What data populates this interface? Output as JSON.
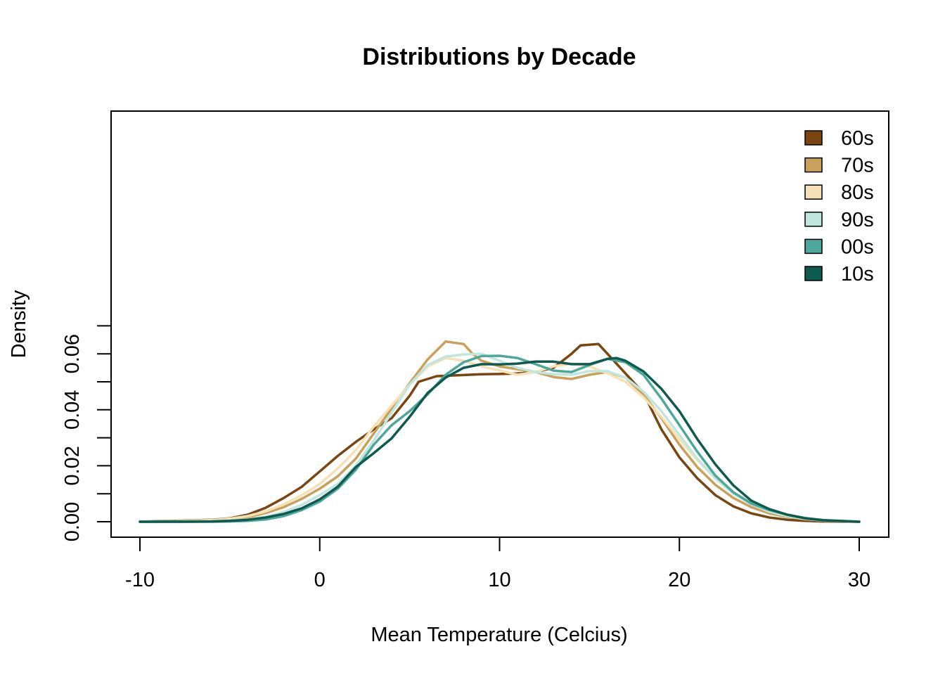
{
  "chart_data": {
    "type": "line",
    "title": "Distributions by Decade",
    "xlabel": "Mean Temperature (Celcius)",
    "ylabel": "Density",
    "xlim": [
      -10,
      30
    ],
    "ylim": [
      0,
      0.07
    ],
    "x_ticks": [
      "-10",
      "0",
      "10",
      "20",
      "30"
    ],
    "y_ticks": [
      "0.00",
      "0.02",
      "0.04",
      "0.06"
    ],
    "legend_position": "top-right",
    "grid": false,
    "series": [
      {
        "name": "60s",
        "color": "#7a4510",
        "points": [
          [
            -10,
            0
          ],
          [
            -9,
            0.0002
          ],
          [
            -8,
            0.0003
          ],
          [
            -7,
            0.0005
          ],
          [
            -6,
            0.0007
          ],
          [
            -5,
            0.0012
          ],
          [
            -4,
            0.0025
          ],
          [
            -3,
            0.005
          ],
          [
            -2,
            0.0085
          ],
          [
            -1,
            0.0125
          ],
          [
            0,
            0.018
          ],
          [
            1,
            0.0235
          ],
          [
            2,
            0.0285
          ],
          [
            3,
            0.033
          ],
          [
            4,
            0.037
          ],
          [
            5,
            0.045
          ],
          [
            5.5,
            0.05
          ],
          [
            6.5,
            0.052
          ],
          [
            8,
            0.0524
          ],
          [
            9,
            0.0527
          ],
          [
            10,
            0.0528
          ],
          [
            11,
            0.053
          ],
          [
            12,
            0.0535
          ],
          [
            13,
            0.055
          ],
          [
            14,
            0.06
          ],
          [
            14.5,
            0.063
          ],
          [
            15.5,
            0.0635
          ],
          [
            16,
            0.06
          ],
          [
            17,
            0.053
          ],
          [
            18,
            0.046
          ],
          [
            19,
            0.033
          ],
          [
            20,
            0.023
          ],
          [
            21,
            0.0155
          ],
          [
            22,
            0.0095
          ],
          [
            23,
            0.0055
          ],
          [
            24,
            0.003
          ],
          [
            25,
            0.0015
          ],
          [
            26,
            0.0007
          ],
          [
            27,
            0.0003
          ],
          [
            28,
            0.0001
          ],
          [
            30,
            0
          ]
        ]
      },
      {
        "name": "70s",
        "color": "#c9a15a",
        "points": [
          [
            -10,
            0
          ],
          [
            -8,
            0.0001
          ],
          [
            -6,
            0.0004
          ],
          [
            -5,
            0.0008
          ],
          [
            -4,
            0.0016
          ],
          [
            -3,
            0.0031
          ],
          [
            -2,
            0.0052
          ],
          [
            -1,
            0.0082
          ],
          [
            0,
            0.0118
          ],
          [
            1,
            0.0162
          ],
          [
            2,
            0.0225
          ],
          [
            3,
            0.0315
          ],
          [
            4,
            0.0405
          ],
          [
            5,
            0.0495
          ],
          [
            6,
            0.058
          ],
          [
            7,
            0.0644
          ],
          [
            8,
            0.0635
          ],
          [
            8.5,
            0.06
          ],
          [
            9,
            0.0575
          ],
          [
            10,
            0.0555
          ],
          [
            11,
            0.0545
          ],
          [
            12,
            0.0535
          ],
          [
            13,
            0.0517
          ],
          [
            14,
            0.051
          ],
          [
            15,
            0.0525
          ],
          [
            16,
            0.0535
          ],
          [
            17,
            0.0515
          ],
          [
            18,
            0.0455
          ],
          [
            19,
            0.037
          ],
          [
            20,
            0.0275
          ],
          [
            21,
            0.0195
          ],
          [
            22,
            0.0132
          ],
          [
            23,
            0.0085
          ],
          [
            24,
            0.0052
          ],
          [
            25,
            0.003
          ],
          [
            26,
            0.0017
          ],
          [
            27,
            0.0009
          ],
          [
            28,
            0.0004
          ],
          [
            30,
            0
          ]
        ]
      },
      {
        "name": "80s",
        "color": "#f5e1b5",
        "points": [
          [
            -10,
            0
          ],
          [
            -8,
            0.0002
          ],
          [
            -6,
            0.0006
          ],
          [
            -5,
            0.0011
          ],
          [
            -4,
            0.002
          ],
          [
            -3,
            0.0037
          ],
          [
            -2,
            0.0062
          ],
          [
            -1,
            0.0095
          ],
          [
            0,
            0.0135
          ],
          [
            1,
            0.019
          ],
          [
            2,
            0.0255
          ],
          [
            3,
            0.034
          ],
          [
            4,
            0.0415
          ],
          [
            5,
            0.049
          ],
          [
            6,
            0.0555
          ],
          [
            7,
            0.0585
          ],
          [
            8,
            0.0575
          ],
          [
            9,
            0.0555
          ],
          [
            10,
            0.054
          ],
          [
            11,
            0.0525
          ],
          [
            12,
            0.0535
          ],
          [
            13,
            0.0555
          ],
          [
            14,
            0.0565
          ],
          [
            15,
            0.0555
          ],
          [
            16,
            0.053
          ],
          [
            17,
            0.05
          ],
          [
            18,
            0.0445
          ],
          [
            19,
            0.0375
          ],
          [
            20,
            0.0295
          ],
          [
            21,
            0.022
          ],
          [
            22,
            0.0155
          ],
          [
            23,
            0.0105
          ],
          [
            24,
            0.0068
          ],
          [
            25,
            0.0042
          ],
          [
            26,
            0.0024
          ],
          [
            27,
            0.0013
          ],
          [
            28,
            0.0006
          ],
          [
            30,
            0
          ]
        ]
      },
      {
        "name": "90s",
        "color": "#c0e6de",
        "points": [
          [
            -10,
            0
          ],
          [
            -8,
            0.0001
          ],
          [
            -6,
            0.0002
          ],
          [
            -5,
            0.0004
          ],
          [
            -4,
            0.0008
          ],
          [
            -3,
            0.0018
          ],
          [
            -2,
            0.0035
          ],
          [
            -1,
            0.006
          ],
          [
            0,
            0.0095
          ],
          [
            1,
            0.0135
          ],
          [
            2,
            0.02
          ],
          [
            3,
            0.029
          ],
          [
            4,
            0.039
          ],
          [
            5,
            0.049
          ],
          [
            6,
            0.056
          ],
          [
            7,
            0.059
          ],
          [
            8,
            0.0598
          ],
          [
            9,
            0.06
          ],
          [
            10,
            0.0575
          ],
          [
            11,
            0.055
          ],
          [
            12,
            0.0535
          ],
          [
            13,
            0.0527
          ],
          [
            14,
            0.0525
          ],
          [
            15,
            0.0538
          ],
          [
            16,
            0.0538
          ],
          [
            17,
            0.0515
          ],
          [
            18,
            0.0465
          ],
          [
            19,
            0.0395
          ],
          [
            20,
            0.031
          ],
          [
            21,
            0.0225
          ],
          [
            22,
            0.0155
          ],
          [
            23,
            0.01
          ],
          [
            24,
            0.0062
          ],
          [
            25,
            0.0036
          ],
          [
            26,
            0.002
          ],
          [
            27,
            0.001
          ],
          [
            28,
            0.0004
          ],
          [
            30,
            0
          ]
        ]
      },
      {
        "name": "00s",
        "color": "#4da79b",
        "points": [
          [
            -10,
            0
          ],
          [
            -6,
            0
          ],
          [
            -5,
            0.0001
          ],
          [
            -4,
            0.0003
          ],
          [
            -3,
            0.0008
          ],
          [
            -2,
            0.002
          ],
          [
            -1,
            0.0042
          ],
          [
            0,
            0.0072
          ],
          [
            1,
            0.0118
          ],
          [
            2,
            0.0185
          ],
          [
            3,
            0.0275
          ],
          [
            4,
            0.0345
          ],
          [
            5,
            0.0395
          ],
          [
            6,
            0.0455
          ],
          [
            7,
            0.0525
          ],
          [
            8,
            0.057
          ],
          [
            9,
            0.0592
          ],
          [
            10,
            0.0593
          ],
          [
            11,
            0.0585
          ],
          [
            12,
            0.0563
          ],
          [
            13,
            0.054
          ],
          [
            14,
            0.0535
          ],
          [
            15,
            0.056
          ],
          [
            16,
            0.0582
          ],
          [
            17,
            0.057
          ],
          [
            18,
            0.0525
          ],
          [
            19,
            0.044
          ],
          [
            20,
            0.0345
          ],
          [
            21,
            0.025
          ],
          [
            22,
            0.0165
          ],
          [
            23,
            0.0105
          ],
          [
            24,
            0.0065
          ],
          [
            25,
            0.0042
          ],
          [
            26,
            0.0025
          ],
          [
            27,
            0.0013
          ],
          [
            28,
            0.0006
          ],
          [
            30,
            0
          ]
        ]
      },
      {
        "name": "10s",
        "color": "#0e5a4e",
        "points": [
          [
            -10,
            0
          ],
          [
            -8,
            0
          ],
          [
            -6,
            0.0001
          ],
          [
            -5,
            0.0003
          ],
          [
            -4,
            0.0007
          ],
          [
            -3,
            0.0015
          ],
          [
            -2,
            0.0028
          ],
          [
            -1,
            0.0048
          ],
          [
            0,
            0.008
          ],
          [
            1,
            0.0125
          ],
          [
            2,
            0.0195
          ],
          [
            3,
            0.0245
          ],
          [
            4,
            0.0298
          ],
          [
            5,
            0.0375
          ],
          [
            6,
            0.046
          ],
          [
            7,
            0.0515
          ],
          [
            8,
            0.055
          ],
          [
            9,
            0.0563
          ],
          [
            10,
            0.0562
          ],
          [
            11,
            0.0565
          ],
          [
            12,
            0.0572
          ],
          [
            13,
            0.0572
          ],
          [
            14,
            0.0563
          ],
          [
            15,
            0.0563
          ],
          [
            16,
            0.0582
          ],
          [
            16.5,
            0.0585
          ],
          [
            17,
            0.0575
          ],
          [
            18,
            0.0537
          ],
          [
            19,
            0.0475
          ],
          [
            20,
            0.0395
          ],
          [
            21,
            0.0295
          ],
          [
            22,
            0.0205
          ],
          [
            23,
            0.013
          ],
          [
            24,
            0.0075
          ],
          [
            25,
            0.0045
          ],
          [
            26,
            0.0025
          ],
          [
            27,
            0.0012
          ],
          [
            28,
            0.0005
          ],
          [
            30,
            0
          ]
        ]
      }
    ]
  }
}
